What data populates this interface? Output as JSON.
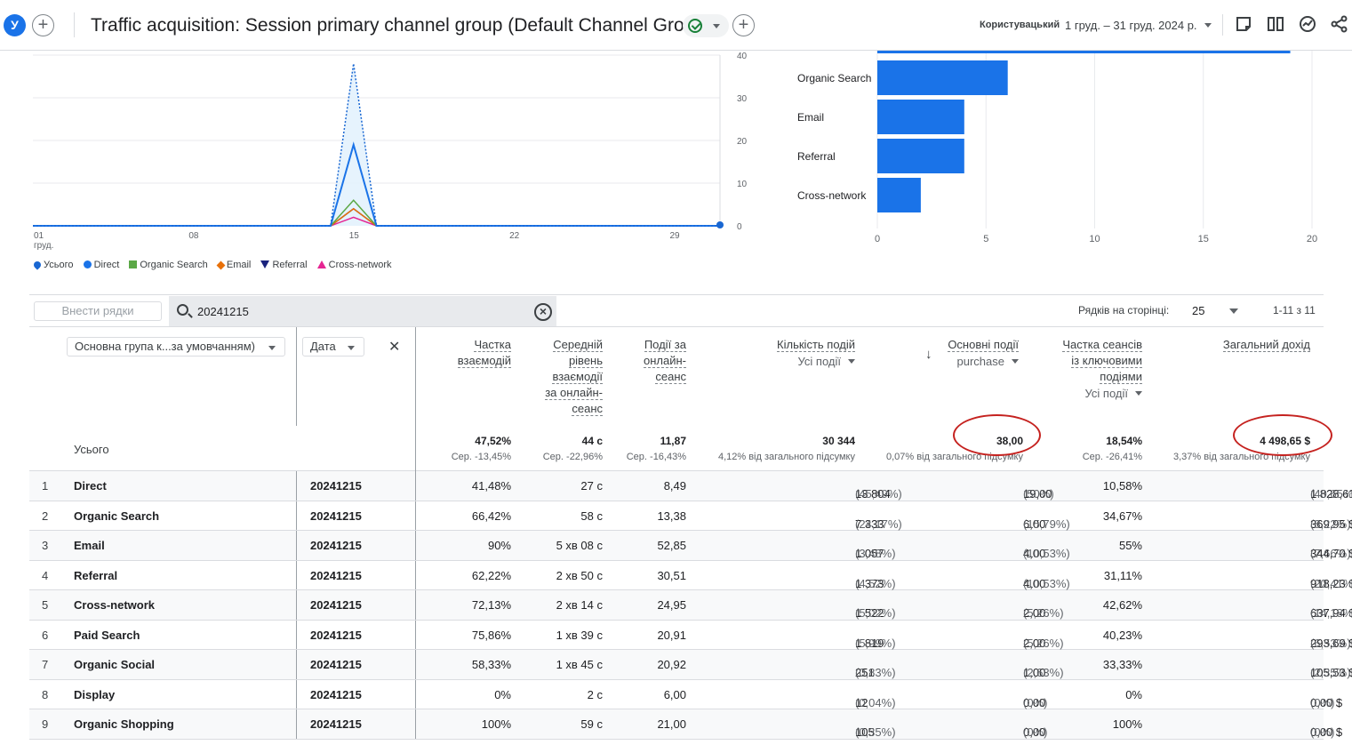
{
  "header": {
    "avatar_letter": "У",
    "title": "Traffic acquisition: Session primary channel group (Default Channel Group)",
    "date_custom": "Користувацький",
    "date_range": "1 груд. – 31 груд. 2024 р."
  },
  "chart_data": [
    {
      "type": "line",
      "title": "",
      "x_tick_labels": [
        "01",
        "08",
        "15",
        "22",
        "29"
      ],
      "x_tick_sub": "груд.",
      "y_ticks": [
        "0",
        "10",
        "20",
        "30",
        "40"
      ],
      "ylim": [
        0,
        40
      ],
      "x": [
        1,
        2,
        3,
        4,
        5,
        6,
        7,
        8,
        9,
        10,
        11,
        12,
        13,
        14,
        15,
        16,
        17,
        18,
        19,
        20,
        21,
        22,
        23,
        24,
        25,
        26,
        27,
        28,
        29,
        30,
        31
      ],
      "series": [
        {
          "name": "Усього",
          "values": [
            0,
            0,
            0,
            0,
            0,
            0,
            0,
            0,
            0,
            0,
            0,
            0,
            0,
            0,
            38,
            0,
            0,
            0,
            0,
            0,
            0,
            0,
            0,
            0,
            0,
            0,
            0,
            0,
            0,
            0,
            0
          ]
        },
        {
          "name": "Direct",
          "values": [
            0,
            0,
            0,
            0,
            0,
            0,
            0,
            0,
            0,
            0,
            0,
            0,
            0,
            0,
            19,
            0,
            0,
            0,
            0,
            0,
            0,
            0,
            0,
            0,
            0,
            0,
            0,
            0,
            0,
            0,
            0
          ]
        },
        {
          "name": "Organic Search",
          "values": [
            0,
            0,
            0,
            0,
            0,
            0,
            0,
            0,
            0,
            0,
            0,
            0,
            0,
            0,
            6,
            0,
            0,
            0,
            0,
            0,
            0,
            0,
            0,
            0,
            0,
            0,
            0,
            0,
            0,
            0,
            0
          ]
        },
        {
          "name": "Email",
          "values": [
            0,
            0,
            0,
            0,
            0,
            0,
            0,
            0,
            0,
            0,
            0,
            0,
            0,
            0,
            4,
            0,
            0,
            0,
            0,
            0,
            0,
            0,
            0,
            0,
            0,
            0,
            0,
            0,
            0,
            0,
            0
          ]
        },
        {
          "name": "Referral",
          "values": [
            0,
            0,
            0,
            0,
            0,
            0,
            0,
            0,
            0,
            0,
            0,
            0,
            0,
            0,
            4,
            0,
            0,
            0,
            0,
            0,
            0,
            0,
            0,
            0,
            0,
            0,
            0,
            0,
            0,
            0,
            0
          ]
        },
        {
          "name": "Cross-network",
          "values": [
            0,
            0,
            0,
            0,
            0,
            0,
            0,
            0,
            0,
            0,
            0,
            0,
            0,
            0,
            2,
            0,
            0,
            0,
            0,
            0,
            0,
            0,
            0,
            0,
            0,
            0,
            0,
            0,
            0,
            0,
            0
          ]
        }
      ]
    },
    {
      "type": "bar",
      "orientation": "horizontal",
      "categories": [
        "Direct",
        "Organic Search",
        "Email",
        "Referral",
        "Cross-network"
      ],
      "values": [
        19,
        6,
        4,
        4,
        2
      ],
      "xlim": [
        0,
        20
      ],
      "x_ticks": [
        "0",
        "5",
        "10",
        "15",
        "20"
      ]
    }
  ],
  "legend": [
    {
      "name": "Усього",
      "color": "#1967d2",
      "shape": "pin"
    },
    {
      "name": "Direct",
      "color": "#1a73e8",
      "shape": "dot"
    },
    {
      "name": "Organic Search",
      "color": "#5ba846",
      "shape": "square"
    },
    {
      "name": "Email",
      "color": "#e8710a",
      "shape": "diamond"
    },
    {
      "name": "Referral",
      "color": "#1a237e",
      "shape": "triangle"
    },
    {
      "name": "Cross-network",
      "color": "#e52592",
      "shape": "triangle-up"
    }
  ],
  "colors": {
    "total": "#1967d2",
    "direct": "#1a73e8",
    "organic": "#5ba846",
    "email": "#e8710a",
    "referral": "#1a237e",
    "cross": "#e52592",
    "bar": "#1a73e8",
    "annotation": "#c5221f"
  },
  "toolbar": {
    "add_rows": "Внести рядки",
    "search_value": "20241215",
    "rows_per_page_label": "Рядків на сторінці:",
    "rows_per_page": "25",
    "pager": "1-11 з 11"
  },
  "table": {
    "dim1": "Основна група к...за умовчанням)",
    "dim2": "Дата",
    "metrics": [
      {
        "title": [
          "Частка",
          "взаємодій"
        ],
        "sub": ""
      },
      {
        "title": [
          "Середній",
          "рівень",
          "взаємодії",
          "за онлайн-",
          "сеанс"
        ],
        "sub": ""
      },
      {
        "title": [
          "Події за",
          "онлайн-",
          "сеанс"
        ],
        "sub": ""
      },
      {
        "title": [
          "Кількість подій"
        ],
        "sub": "Усі події"
      },
      {
        "title": [
          "Основні події"
        ],
        "sub": "purchase"
      },
      {
        "title": [
          "Частка сеансів",
          "із ключовими",
          "подіями"
        ],
        "sub": "Усі події"
      },
      {
        "title": [
          "Загальний дохід"
        ],
        "sub": ""
      }
    ],
    "totals_label": "Усього",
    "totals": [
      {
        "value": "47,52%",
        "sub": "Сер. -13,45%"
      },
      {
        "value": "44 с",
        "sub": "Сер. -22,96%"
      },
      {
        "value": "11,87",
        "sub": "Сер. -16,43%"
      },
      {
        "value": "30 344",
        "sub": "4,12% від загального підсумку"
      },
      {
        "value": "38,00",
        "sub": "0,07% від загального підсумку"
      },
      {
        "value": "18,54%",
        "sub": "Сер. -26,41%"
      },
      {
        "value": "4 498,65 $",
        "sub": "3,37% від загального підсумку"
      }
    ],
    "rows": [
      {
        "idx": "1",
        "channel": "Direct",
        "date": "20241215",
        "eng": "41,48%",
        "avg": "27 с",
        "eps": "8,49",
        "events": "13 804",
        "events_pct": "(45,49%)",
        "key": "19,00",
        "key_pct": "(50%)",
        "kr": "10,58%",
        "rev": "1 828,61 $",
        "rev_pct": "(40,65%)"
      },
      {
        "idx": "2",
        "channel": "Organic Search",
        "date": "20241215",
        "eng": "66,42%",
        "avg": "58 с",
        "eps": "13,38",
        "events": "7 333",
        "events_pct": "(24,17%)",
        "key": "6,00",
        "key_pct": "(15,79%)",
        "kr": "34,67%",
        "rev": "369,95 $",
        "rev_pct": "(8,22%)"
      },
      {
        "idx": "3",
        "channel": "Email",
        "date": "20241215",
        "eng": "90%",
        "avg": "5 хв 08 с",
        "eps": "52,85",
        "events": "1 057",
        "events_pct": "(3,48%)",
        "key": "4,00",
        "key_pct": "(10,53%)",
        "kr": "55%",
        "rev": "344,70 $",
        "rev_pct": "(7,66%)"
      },
      {
        "idx": "4",
        "channel": "Referral",
        "date": "20241215",
        "eng": "62,22%",
        "avg": "2 хв 50 с",
        "eps": "30,51",
        "events": "1 373",
        "events_pct": "(4,52%)",
        "key": "4,00",
        "key_pct": "(10,53%)",
        "kr": "31,11%",
        "rev": "918,23 $",
        "rev_pct": "(20,41%)"
      },
      {
        "idx": "5",
        "channel": "Cross-network",
        "date": "20241215",
        "eng": "72,13%",
        "avg": "2 хв 14 с",
        "eps": "24,95",
        "events": "1 522",
        "events_pct": "(5,02%)",
        "key": "2,00",
        "key_pct": "(5,26%)",
        "kr": "42,62%",
        "rev": "637,94 $",
        "rev_pct": "(14,18%)"
      },
      {
        "idx": "6",
        "channel": "Paid Search",
        "date": "20241215",
        "eng": "75,86%",
        "avg": "1 хв 39 с",
        "eps": "20,91",
        "events": "1 819",
        "events_pct": "(5,99%)",
        "key": "2,00",
        "key_pct": "(5,26%)",
        "kr": "40,23%",
        "rev": "293,69 $",
        "rev_pct": "(6,53%)"
      },
      {
        "idx": "7",
        "channel": "Organic Social",
        "date": "20241215",
        "eng": "58,33%",
        "avg": "1 хв 45 с",
        "eps": "20,92",
        "events": "251",
        "events_pct": "(0,83%)",
        "key": "1,00",
        "key_pct": "(2,63%)",
        "kr": "33,33%",
        "rev": "105,53 $",
        "rev_pct": "(2,35%)"
      },
      {
        "idx": "8",
        "channel": "Display",
        "date": "20241215",
        "eng": "0%",
        "avg": "2 с",
        "eps": "6,00",
        "events": "12",
        "events_pct": "(0,04%)",
        "key": "0,00",
        "key_pct": "(0%)",
        "kr": "0%",
        "rev": "0,00 $",
        "rev_pct": "(0%)"
      },
      {
        "idx": "9",
        "channel": "Organic Shopping",
        "date": "20241215",
        "eng": "100%",
        "avg": "59 с",
        "eps": "21,00",
        "events": "105",
        "events_pct": "(0,35%)",
        "key": "0,00",
        "key_pct": "(0%)",
        "kr": "100%",
        "rev": "0,00 $",
        "rev_pct": "(0%)"
      }
    ]
  }
}
